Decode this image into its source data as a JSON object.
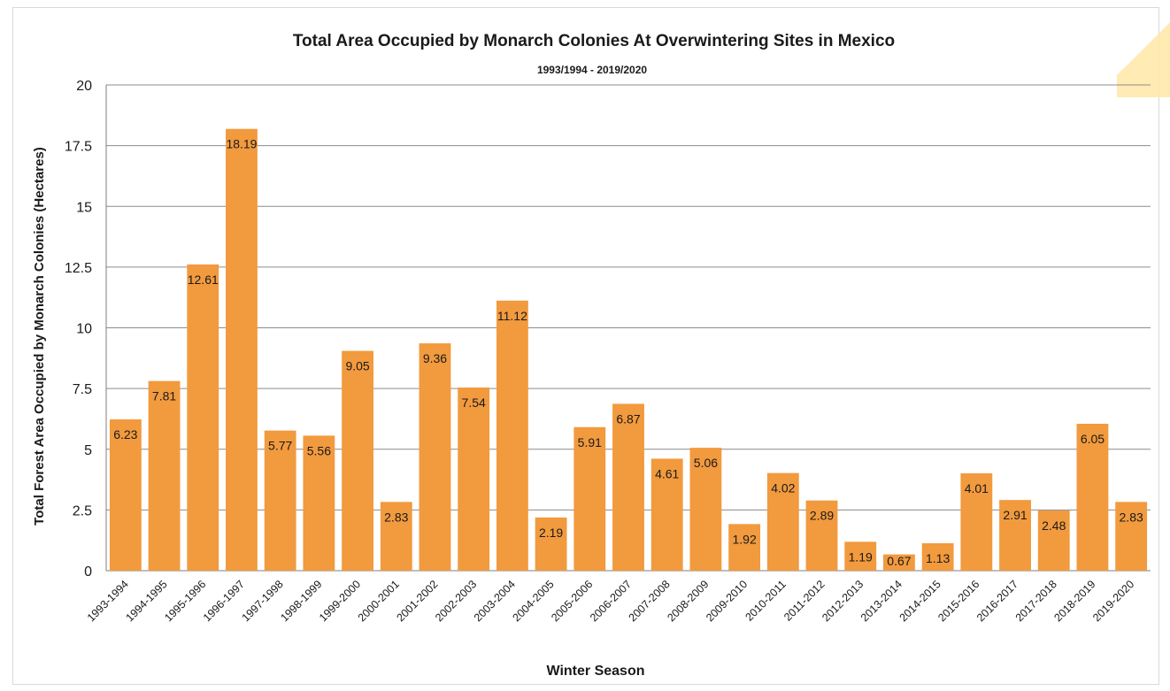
{
  "chart_data": {
    "type": "bar",
    "title": "Total Area Occupied by Monarch Colonies At Overwintering Sites in Mexico",
    "subtitle": "1993/1994 - 2019/2020",
    "xlabel": "Winter Season",
    "ylabel": "Total Forest Area Occupied by Monarch Colonies (Hectares)",
    "ylim": [
      0,
      20
    ],
    "yticks": [
      0,
      2.5,
      5,
      7.5,
      10,
      12.5,
      15,
      17.5,
      20
    ],
    "ytick_labels": [
      "0",
      "2.5",
      "5",
      "7.5",
      "10",
      "12.5",
      "15",
      "17.5",
      "20"
    ],
    "grid": true,
    "bar_color": "#f29a3e",
    "categories": [
      "1993-1994",
      "1994-1995",
      "1995-1996",
      "1996-1997",
      "1997-1998",
      "1998-1999",
      "1999-2000",
      "2000-2001",
      "2001-2002",
      "2002-2003",
      "2003-2004",
      "2004-2005",
      "2005-2006",
      "2006-2007",
      "2007-2008",
      "2008-2009",
      "2009-2010",
      "2010-2011",
      "2011-2012",
      "2012-2013",
      "2013-2014",
      "2014-2015",
      "2015-2016",
      "2016-2017",
      "2017-2018",
      "2018-2019",
      "2019-2020"
    ],
    "values": [
      6.23,
      7.81,
      12.61,
      18.19,
      5.77,
      5.56,
      9.05,
      2.83,
      9.36,
      7.54,
      11.12,
      2.19,
      5.91,
      6.87,
      4.61,
      5.06,
      1.92,
      4.02,
      2.89,
      1.19,
      0.67,
      1.13,
      4.01,
      2.91,
      2.48,
      6.05,
      2.83
    ],
    "value_labels": [
      "6.23",
      "7.81",
      "12.61",
      "18.19",
      "5.77",
      "5.56",
      "9.05",
      "2.83",
      "9.36",
      "7.54",
      "11.12",
      "2.19",
      "5.91",
      "6.87",
      "4.61",
      "5.06",
      "1.92",
      "4.02",
      "2.89",
      "1.19",
      "0.67",
      "1.13",
      "4.01",
      "2.91",
      "2.48",
      "6.05",
      "2.83"
    ]
  }
}
